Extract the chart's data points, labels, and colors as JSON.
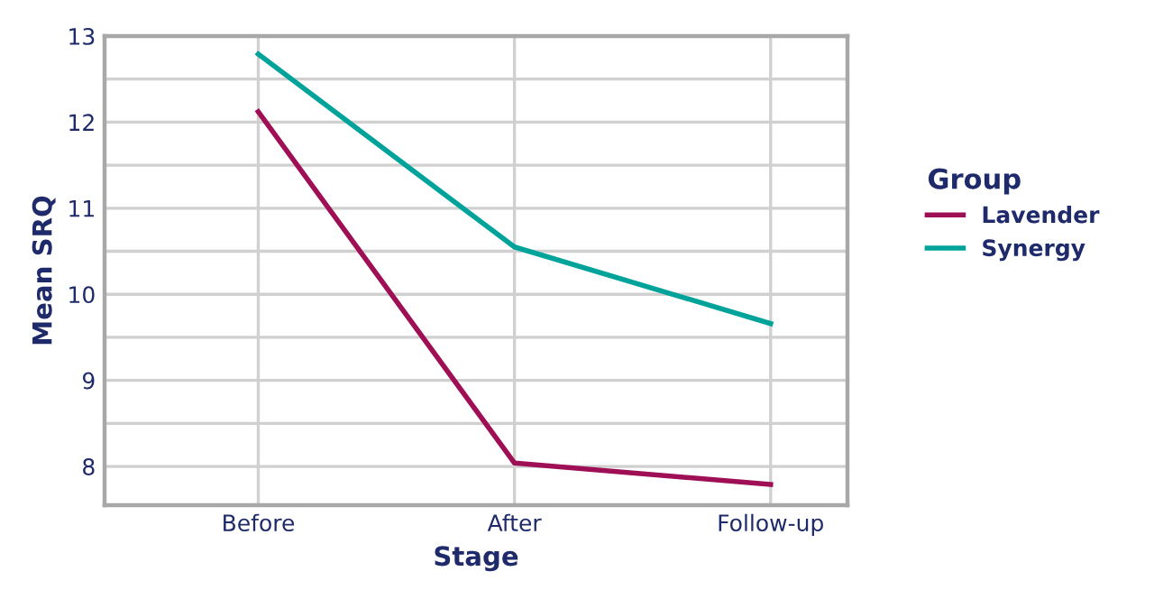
{
  "chart_data": {
    "type": "line",
    "xlabel": "Stage",
    "ylabel": "Mean SRQ",
    "legend_title": "Group",
    "categories": [
      "Before",
      "After",
      "Follow-up"
    ],
    "series": [
      {
        "name": "Lavender",
        "color": "#9e0f55",
        "values": [
          12.12,
          8.04,
          7.79
        ]
      },
      {
        "name": "Synergy",
        "color": "#00a39a",
        "values": [
          12.79,
          10.55,
          9.66
        ]
      }
    ],
    "ylim": [
      7.55,
      13
    ],
    "yticks": [
      8,
      {
        "value": 8.5,
        "label": null
      },
      9,
      {
        "value": 9.5,
        "label": null
      },
      10,
      {
        "value": 10.5,
        "label": null
      },
      11,
      {
        "value": 11.5,
        "label": null
      },
      12,
      {
        "value": 12.5,
        "label": null
      },
      13
    ],
    "grid": true,
    "legend": "right",
    "marker": "none",
    "line_style": "solid"
  }
}
